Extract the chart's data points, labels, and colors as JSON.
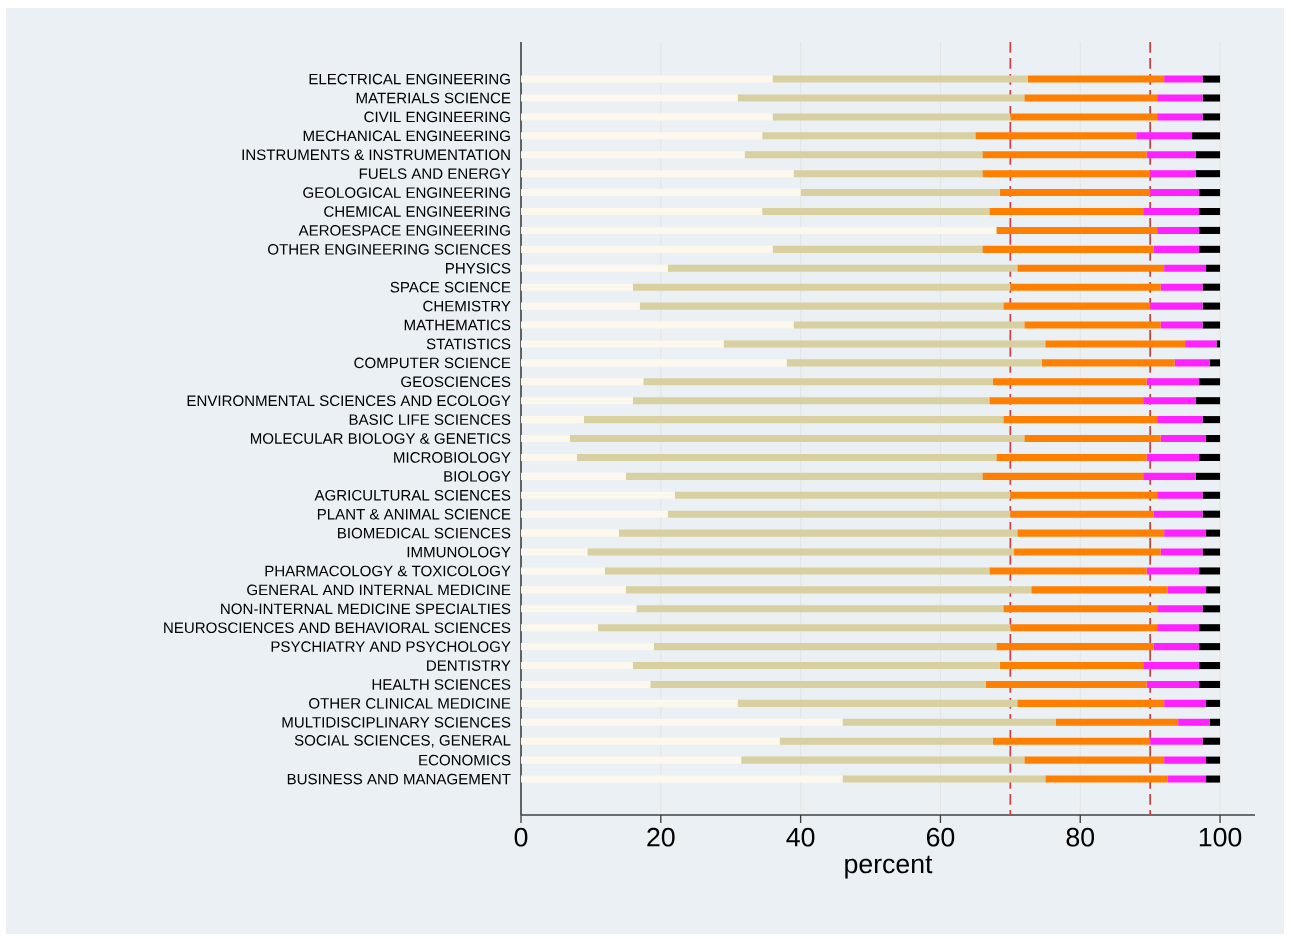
{
  "chart_data": {
    "type": "bar",
    "orientation": "horizontal",
    "stacked": true,
    "xlabel": "percent",
    "categories": [
      "ELECTRICAL ENGINEERING",
      "MATERIALS SCIENCE",
      "CIVIL ENGINEERING",
      "MECHANICAL ENGINEERING",
      "INSTRUMENTS & INSTRUMENTATION",
      "FUELS AND ENERGY",
      "GEOLOGICAL ENGINEERING",
      "CHEMICAL ENGINEERING",
      "AEROESPACE ENGINEERING",
      "OTHER ENGINEERING SCIENCES",
      "PHYSICS",
      "SPACE SCIENCE",
      "CHEMISTRY",
      "MATHEMATICS",
      "STATISTICS",
      "COMPUTER SCIENCE",
      "GEOSCIENCES",
      "ENVIRONMENTAL SCIENCES AND ECOLOGY",
      "BASIC LIFE SCIENCES",
      "MOLECULAR BIOLOGY & GENETICS",
      "MICROBIOLOGY",
      "BIOLOGY",
      "AGRICULTURAL SCIENCES",
      "PLANT & ANIMAL SCIENCE",
      "BIOMEDICAL SCIENCES",
      "IMMUNOLOGY",
      "PHARMACOLOGY & TOXICOLOGY",
      "GENERAL AND INTERNAL MEDICINE",
      "NON-INTERNAL MEDICINE SPECIALTIES",
      "NEUROSCIENCES AND BEHAVIORAL SCIENCES",
      "PSYCHIATRY AND PSYCHOLOGY",
      "DENTISTRY",
      "HEALTH SCIENCES",
      "OTHER CLINICAL MEDICINE",
      "MULTIDISCIPLINARY SCIENCES",
      "SOCIAL SCIENCES, GENERAL",
      "ECONOMICS",
      "BUSINESS AND MANAGEMENT"
    ],
    "series": [
      {
        "color": "#fdf8ee",
        "values": [
          36,
          31,
          36,
          34.5,
          32,
          39,
          40,
          34.5,
          68,
          36,
          21,
          16,
          17,
          39,
          29,
          38,
          17.5,
          16,
          9,
          7,
          8,
          15,
          22,
          21,
          14,
          9.5,
          12,
          15,
          16.5,
          11,
          19,
          16,
          18.5,
          31,
          46,
          37,
          31.5,
          46
        ]
      },
      {
        "color": "#d8d0a0",
        "values": [
          36.5,
          41,
          34,
          30.5,
          34,
          27,
          28.5,
          32.5,
          0,
          30,
          50,
          54,
          52,
          33,
          46,
          36.5,
          50,
          51,
          60,
          65,
          60,
          51,
          48,
          49,
          57,
          61,
          55,
          58,
          52.5,
          59,
          49,
          52.5,
          48,
          40,
          30.5,
          30.5,
          40.5,
          29
        ]
      },
      {
        "color": "#ff8000",
        "values": [
          19.5,
          19,
          21,
          23,
          23.5,
          24,
          21.5,
          22,
          23,
          24.5,
          21,
          21.5,
          21,
          19.5,
          20,
          19,
          22,
          22,
          22,
          19.5,
          21.5,
          23,
          21,
          20.5,
          21,
          21,
          22.5,
          19.5,
          22,
          21,
          22.5,
          20.5,
          23,
          21,
          17.5,
          22.5,
          20,
          17.5
        ]
      },
      {
        "color": "#ff22ff",
        "values": [
          5.5,
          6.5,
          6.5,
          8,
          7,
          6.5,
          7,
          8,
          6,
          6.5,
          6,
          6,
          7.5,
          6,
          4.5,
          5,
          7.5,
          7.5,
          6.5,
          6.5,
          7.5,
          7.5,
          6.5,
          7,
          6,
          6,
          7.5,
          5.5,
          6.5,
          6,
          6.5,
          8,
          7.5,
          6,
          4.5,
          7.5,
          6,
          5.5
        ]
      },
      {
        "color": "#000000",
        "values": [
          2.5,
          2.5,
          2.5,
          4,
          3.5,
          3.5,
          3,
          3,
          3,
          3,
          2,
          2.5,
          2.5,
          2.5,
          0.5,
          1.5,
          3,
          3.5,
          2.5,
          2,
          3,
          3.5,
          2.5,
          2.5,
          2,
          2.5,
          3,
          2,
          2.5,
          3,
          3,
          3,
          3,
          2,
          1.5,
          2.5,
          2,
          2
        ]
      }
    ],
    "xlim": [
      0,
      105
    ],
    "xticks": [
      0,
      20,
      40,
      60,
      80,
      100
    ],
    "grid": "x",
    "ref_lines": [
      {
        "axis": "x",
        "value": 70,
        "color": "#d04040",
        "line_style": "dashed"
      },
      {
        "axis": "x",
        "value": 90,
        "color": "#d04040",
        "line_style": "dashed"
      }
    ]
  }
}
